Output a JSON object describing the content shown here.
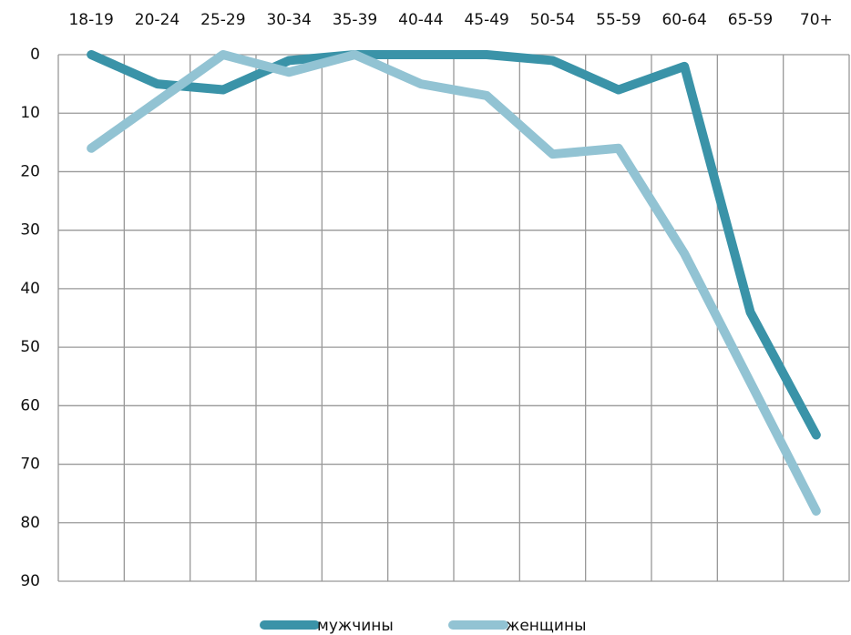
{
  "chart_data": {
    "type": "line",
    "categories": [
      "18-19",
      "20-24",
      "25-29",
      "30-34",
      "35-39",
      "40-44",
      "45-49",
      "50-54",
      "55-59",
      "60-64",
      "65-59",
      "70+"
    ],
    "series": [
      {
        "name": "мужчины",
        "color": "#3a93a8",
        "values": [
          0,
          5,
          6,
          1,
          0,
          0,
          0,
          1,
          6,
          2,
          44,
          65
        ]
      },
      {
        "name": "женщины",
        "color": "#92c3d3",
        "values": [
          16,
          8,
          0,
          3,
          0,
          5,
          7,
          17,
          16,
          34,
          56,
          78
        ]
      }
    ],
    "ylim": [
      0,
      90
    ],
    "yticks": [
      0,
      10,
      20,
      30,
      40,
      50,
      60,
      70,
      80,
      90
    ],
    "y_inverted": true,
    "grid": true,
    "legend": "bottom"
  }
}
